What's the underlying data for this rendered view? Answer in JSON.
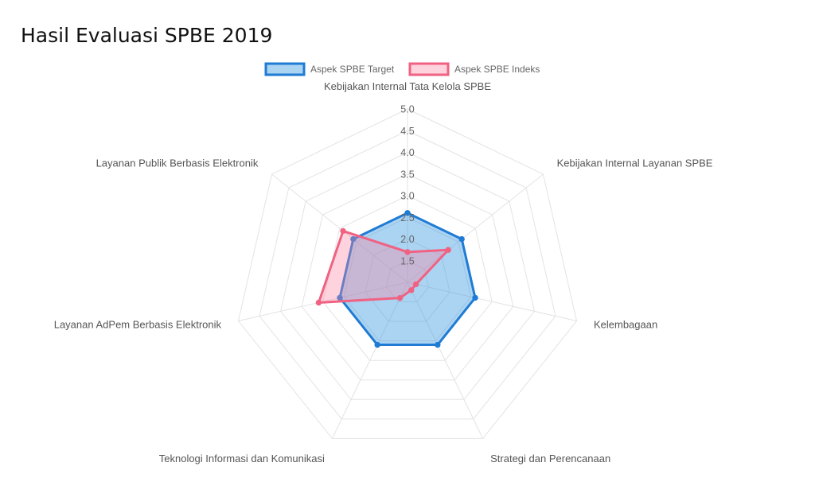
{
  "chart_data": {
    "type": "radar",
    "title": "Hasil Evaluasi SPBE 2019",
    "axes": [
      "Kebijakan Internal Tata Kelola SPBE",
      "Kebijakan Internal Layanan SPBE",
      "Kelembagaan",
      "Strategi dan Perencanaan",
      "Teknologi Informasi dan Komunikasi",
      "Layanan AdPem Berbasis Elektronik",
      "Layanan Publik Berbasis Elektronik"
    ],
    "ticks": [
      "1.5",
      "2.0",
      "2.5",
      "3.0",
      "3.5",
      "4.0",
      "4.5",
      "5.0"
    ],
    "range": [
      1,
      5
    ],
    "grid": true,
    "legend_position": "top",
    "series": [
      {
        "name": "Aspek SPBE Target",
        "values": [
          2.6,
          2.6,
          2.6,
          2.6,
          2.6,
          2.6,
          2.6
        ],
        "stroke": "#1f7bd4",
        "fill": "rgba(54,150,225,0.42)"
      },
      {
        "name": "Aspek SPBE Indeks",
        "values": [
          1.7,
          2.2,
          1.2,
          1.2,
          1.4,
          3.1,
          2.9
        ],
        "stroke": "#f06282",
        "fill": "rgba(255,130,160,0.35)"
      }
    ]
  }
}
